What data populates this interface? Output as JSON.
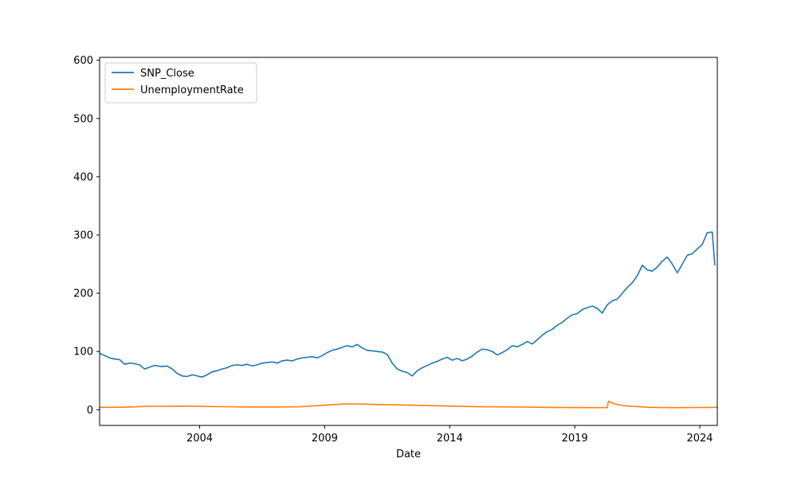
{
  "chart_data": {
    "type": "line",
    "title": "",
    "xlabel": "Date",
    "ylabel": "",
    "xlim": [
      2000.0,
      2024.7
    ],
    "ylim": [
      -27,
      605
    ],
    "x_ticks": [
      2004,
      2009,
      2014,
      2019,
      2024
    ],
    "x_tick_labels": [
      "2004",
      "2009",
      "2014",
      "2019",
      "2024"
    ],
    "y_ticks": [
      0,
      100,
      200,
      300,
      400,
      500,
      600
    ],
    "y_tick_labels": [
      "0",
      "100",
      "200",
      "300",
      "400",
      "500",
      "600"
    ],
    "grid": false,
    "legend_position": "top-left",
    "series": [
      {
        "name": "SNP_Close",
        "color": "#1f77b4",
        "points": [
          [
            2000.0,
            97
          ],
          [
            2000.2,
            93
          ],
          [
            2000.4,
            89
          ],
          [
            2000.6,
            87
          ],
          [
            2000.8,
            86
          ],
          [
            2001.0,
            78
          ],
          [
            2001.2,
            80
          ],
          [
            2001.4,
            79
          ],
          [
            2001.6,
            77
          ],
          [
            2001.8,
            70
          ],
          [
            2002.0,
            73
          ],
          [
            2002.2,
            76
          ],
          [
            2002.5,
            74
          ],
          [
            2002.7,
            75
          ],
          [
            2002.9,
            70
          ],
          [
            2003.1,
            62
          ],
          [
            2003.3,
            58
          ],
          [
            2003.5,
            57
          ],
          [
            2003.7,
            60
          ],
          [
            2003.9,
            58
          ],
          [
            2004.1,
            56
          ],
          [
            2004.3,
            60
          ],
          [
            2004.5,
            65
          ],
          [
            2004.7,
            67
          ],
          [
            2004.9,
            70
          ],
          [
            2005.1,
            72
          ],
          [
            2005.3,
            76
          ],
          [
            2005.5,
            77
          ],
          [
            2005.7,
            76
          ],
          [
            2005.9,
            78
          ],
          [
            2006.1,
            75
          ],
          [
            2006.3,
            77
          ],
          [
            2006.5,
            80
          ],
          [
            2006.7,
            81
          ],
          [
            2006.9,
            82
          ],
          [
            2007.1,
            80
          ],
          [
            2007.3,
            84
          ],
          [
            2007.5,
            85
          ],
          [
            2007.7,
            84
          ],
          [
            2007.9,
            87
          ],
          [
            2008.1,
            89
          ],
          [
            2008.3,
            90
          ],
          [
            2008.5,
            91
          ],
          [
            2008.7,
            89
          ],
          [
            2008.9,
            93
          ],
          [
            2009.1,
            98
          ],
          [
            2009.3,
            102
          ],
          [
            2009.5,
            104
          ],
          [
            2009.7,
            107
          ],
          [
            2009.9,
            110
          ],
          [
            2010.1,
            108
          ],
          [
            2010.3,
            112
          ],
          [
            2010.5,
            106
          ],
          [
            2010.7,
            102
          ],
          [
            2010.9,
            101
          ],
          [
            2011.1,
            100
          ],
          [
            2011.3,
            99
          ],
          [
            2011.5,
            95
          ],
          [
            2011.7,
            80
          ],
          [
            2011.9,
            70
          ],
          [
            2012.1,
            66
          ],
          [
            2012.3,
            64
          ],
          [
            2012.5,
            58
          ],
          [
            2012.7,
            67
          ],
          [
            2012.9,
            72
          ],
          [
            2013.1,
            76
          ],
          [
            2013.3,
            80
          ],
          [
            2013.5,
            83
          ],
          [
            2013.7,
            87
          ],
          [
            2013.9,
            90
          ],
          [
            2014.1,
            85
          ],
          [
            2014.3,
            88
          ],
          [
            2014.5,
            84
          ],
          [
            2014.7,
            87
          ],
          [
            2014.9,
            92
          ],
          [
            2015.1,
            99
          ],
          [
            2015.3,
            104
          ],
          [
            2015.5,
            103
          ],
          [
            2015.7,
            100
          ],
          [
            2015.9,
            94
          ],
          [
            2016.1,
            98
          ],
          [
            2016.3,
            103
          ],
          [
            2016.5,
            110
          ],
          [
            2016.7,
            108
          ],
          [
            2016.9,
            112
          ],
          [
            2017.1,
            117
          ],
          [
            2017.3,
            113
          ],
          [
            2017.5,
            120
          ],
          [
            2017.7,
            128
          ],
          [
            2017.9,
            134
          ],
          [
            2018.1,
            138
          ],
          [
            2018.3,
            145
          ],
          [
            2018.5,
            150
          ],
          [
            2018.7,
            157
          ],
          [
            2018.9,
            163
          ],
          [
            2019.1,
            165
          ],
          [
            2019.3,
            172
          ],
          [
            2019.5,
            175
          ],
          [
            2019.7,
            178
          ],
          [
            2019.9,
            174
          ],
          [
            2020.1,
            166
          ],
          [
            2020.3,
            180
          ],
          [
            2020.5,
            187
          ],
          [
            2020.7,
            190
          ],
          [
            2020.9,
            200
          ],
          [
            2021.1,
            210
          ],
          [
            2021.3,
            218
          ],
          [
            2021.5,
            230
          ],
          [
            2021.7,
            248
          ],
          [
            2021.9,
            240
          ],
          [
            2022.1,
            238
          ],
          [
            2022.3,
            245
          ],
          [
            2022.5,
            255
          ],
          [
            2022.7,
            262
          ],
          [
            2022.9,
            250
          ],
          [
            2023.1,
            235
          ],
          [
            2023.3,
            250
          ],
          [
            2023.5,
            265
          ],
          [
            2023.7,
            268
          ],
          [
            2023.9,
            276
          ],
          [
            2024.1,
            284
          ],
          [
            2024.3,
            304
          ],
          [
            2024.5,
            305
          ],
          [
            2024.6,
            248
          ]
        ]
      },
      {
        "name": "UnemploymentRate",
        "color": "#ff7f0e",
        "points": [
          [
            2000.0,
            4.0
          ],
          [
            2001.0,
            4.3
          ],
          [
            2002.0,
            5.8
          ],
          [
            2003.0,
            6.0
          ],
          [
            2003.5,
            6.3
          ],
          [
            2004.0,
            5.7
          ],
          [
            2005.0,
            5.2
          ],
          [
            2006.0,
            4.6
          ],
          [
            2007.0,
            4.6
          ],
          [
            2008.0,
            5.0
          ],
          [
            2009.0,
            7.8
          ],
          [
            2009.8,
            10.0
          ],
          [
            2010.5,
            9.6
          ],
          [
            2011.0,
            9.0
          ],
          [
            2012.0,
            8.1
          ],
          [
            2013.0,
            7.4
          ],
          [
            2014.0,
            6.2
          ],
          [
            2015.0,
            5.3
          ],
          [
            2016.0,
            4.9
          ],
          [
            2017.0,
            4.4
          ],
          [
            2018.0,
            3.9
          ],
          [
            2019.0,
            3.7
          ],
          [
            2020.0,
            3.5
          ],
          [
            2020.3,
            3.6
          ],
          [
            2020.35,
            14.7
          ],
          [
            2020.6,
            10.0
          ],
          [
            2021.0,
            6.7
          ],
          [
            2022.0,
            4.0
          ],
          [
            2023.0,
            3.5
          ],
          [
            2024.0,
            3.8
          ],
          [
            2024.7,
            4.1
          ]
        ]
      }
    ]
  }
}
